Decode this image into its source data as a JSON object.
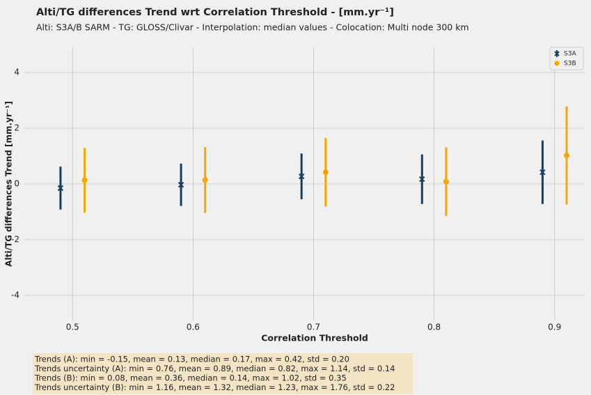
{
  "chart_data": {
    "type": "errorbar",
    "title": "Alti/TG differences Trend wrt Correlation Threshold - [mm.yr⁻¹]",
    "subtitle": "Alti: S3A/B SARM - TG: GLOSS/Clivar - Interpolation: median values - Colocation: Multi node 300 km",
    "x_label": "Correlation Threshold",
    "y_label": "Alti/TG differences Trend [mm.yr⁻¹]",
    "xlim": [
      0.46,
      0.925
    ],
    "ylim": [
      -4.9,
      4.9
    ],
    "xticks": [
      0.5,
      0.6,
      0.7,
      0.8,
      0.9
    ],
    "yticks": [
      -4,
      -2,
      0,
      2,
      4
    ],
    "highlight_xtick": 0.7,
    "highlight_color": "#e8231b",
    "grid": true,
    "legend": "upper right",
    "series": [
      {
        "name": "S3A",
        "color": "#173d5a",
        "marker": "x",
        "x": [
          0.49,
          0.59,
          0.69,
          0.79,
          0.89
        ],
        "values": [
          -0.15,
          -0.03,
          0.27,
          0.17,
          0.42
        ],
        "errors": [
          0.77,
          0.76,
          0.82,
          0.89,
          1.14
        ]
      },
      {
        "name": "S3B",
        "color": "#f5a700",
        "marker": "o",
        "x": [
          0.51,
          0.61,
          0.71,
          0.81,
          0.91
        ],
        "values": [
          0.13,
          0.14,
          0.42,
          0.08,
          1.02
        ],
        "errors": [
          1.16,
          1.18,
          1.23,
          1.23,
          1.76
        ]
      }
    ],
    "annotations": [
      "Trends (A): min = -0.15, mean = 0.13, median = 0.17, max = 0.42, std = 0.20",
      "Trends uncertainty (A): min = 0.76, mean = 0.89, median = 0.82, max = 1.14, std = 0.14",
      "Trends (B): min = 0.08, mean = 0.36, median = 0.14, max = 1.02, std = 0.35",
      "Trends uncertainty (B): min = 1.16, mean = 1.32, median = 1.23, max = 1.76, std = 0.22"
    ]
  }
}
